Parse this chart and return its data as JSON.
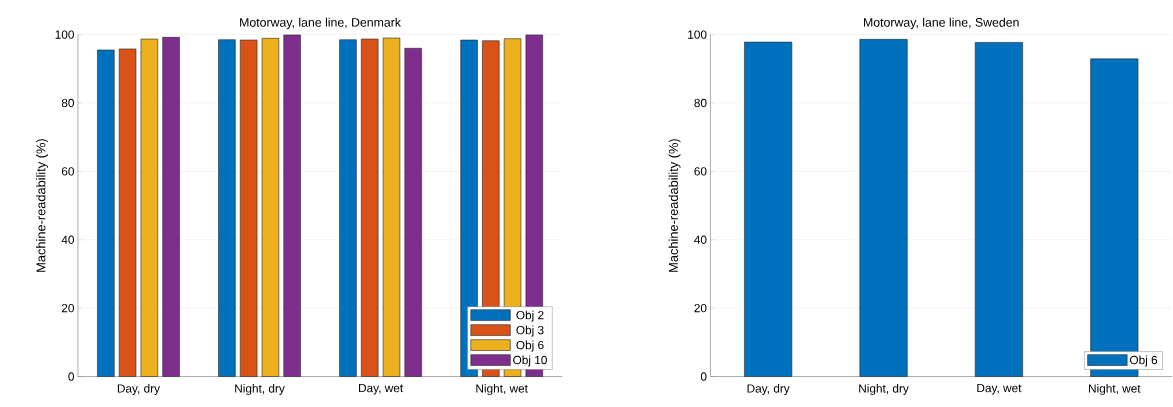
{
  "chart_data": [
    {
      "type": "bar",
      "title": "Motorway, lane line, Denmark",
      "ylabel": "Machine-readability (%)",
      "categories": [
        "Day, dry",
        "Night, dry",
        "Day, wet",
        "Night, wet"
      ],
      "series": [
        {
          "name": "Obj 2",
          "color": "#0072bd",
          "values": [
            95.5,
            98.5,
            98.5,
            98.4
          ]
        },
        {
          "name": "Obj 3",
          "color": "#d95319",
          "values": [
            95.8,
            98.4,
            98.7,
            98.2
          ]
        },
        {
          "name": "Obj 6",
          "color": "#edb120",
          "values": [
            98.7,
            98.9,
            99.0,
            98.8
          ]
        },
        {
          "name": "Obj 10",
          "color": "#7e2f8e",
          "values": [
            99.2,
            99.9,
            96.0,
            99.9
          ]
        }
      ],
      "ylim": [
        0,
        100
      ],
      "yticks": [
        0,
        20,
        40,
        60,
        80,
        100
      ],
      "grid": "y",
      "legend": "bottom right"
    },
    {
      "type": "bar",
      "title": "Motorway, lane line, Sweden",
      "ylabel": "Machine-readability (%)",
      "categories": [
        "Day, dry",
        "Night, dry",
        "Day, wet",
        "Night, wet"
      ],
      "series": [
        {
          "name": "Obj 6",
          "color": "#0072bd",
          "values": [
            97.8,
            98.6,
            97.7,
            92.9
          ]
        }
      ],
      "ylim": [
        0,
        100
      ],
      "yticks": [
        0,
        20,
        40,
        60,
        80,
        100
      ],
      "grid": "y",
      "legend": "bottom right"
    }
  ]
}
